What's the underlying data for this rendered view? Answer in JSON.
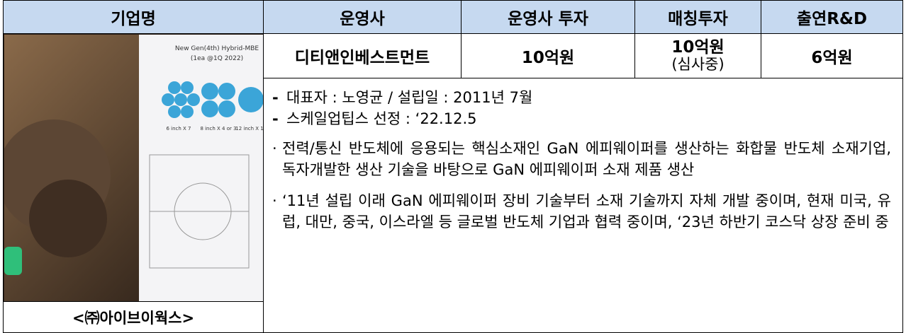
{
  "header": [
    "기업명",
    "운영사",
    "운영사 투자",
    "매칭투자",
    "출연R&D"
  ],
  "company": {
    "image_texts": {
      "title": "New Gen(4th) Hybrid-MBE",
      "subtitle": "(1ea @1Q 2022)",
      "labels": [
        "6 inch X 7",
        "8 inch X 4 or 3",
        "12 inch X 1"
      ]
    },
    "caption": "<㈜아이브이웍스>"
  },
  "investment": {
    "operator": "디티앤인베스트먼트",
    "operator_investment": "10억원",
    "matching_investment": "10억원",
    "matching_note": "(심사중)",
    "rnd": "6억원"
  },
  "description": {
    "bullets": [
      "대표자 : 노영균 / 설립일 : 2011년 7월",
      "스케일업팁스 선정 : ‘22.12.5"
    ],
    "paragraphs": [
      "전력/통신 반도체에 응용되는 핵심소재인 GaN 에피웨이퍼를 생산하는 화합물 반도체 소재기업, 독자개발한 생산 기술을 바탕으로 GaN 에피웨이퍼 소재 제품 생산",
      "‘11년 설립 이래 GaN 에피웨이퍼 장비 기술부터 소재 기술까지 자체 개발 중이며, 현재 미국, 유럽, 대만, 중국, 이스라엘 등 글로벌 반도체 기업과 협력 중이며, ‘23년 하반기 코스닥 상장 준비 중"
    ]
  }
}
